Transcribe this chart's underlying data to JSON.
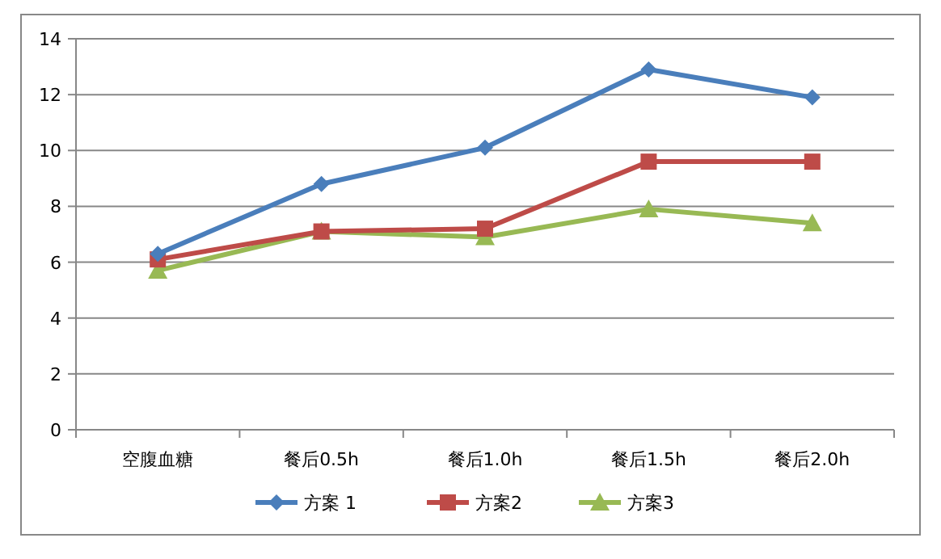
{
  "chart_data": {
    "type": "line",
    "categories": [
      "空腹血糖",
      "餐后0.5h",
      "餐后1.0h",
      "餐后1.5h",
      "餐后2.0h"
    ],
    "series": [
      {
        "name": "方案 1",
        "color": "#4a7ebb",
        "marker": "diamond",
        "values": [
          6.3,
          8.8,
          10.1,
          12.9,
          11.9
        ]
      },
      {
        "name": "方案2",
        "color": "#be4b48",
        "marker": "square",
        "values": [
          6.1,
          7.1,
          7.2,
          9.6,
          9.6
        ]
      },
      {
        "name": "方案3",
        "color": "#98b954",
        "marker": "triangle",
        "values": [
          5.7,
          7.1,
          6.9,
          7.9,
          7.4
        ]
      }
    ],
    "ylim": [
      0,
      14
    ],
    "yticks": [
      0,
      2,
      4,
      6,
      8,
      10,
      12,
      14
    ],
    "grid": "y",
    "legend": "bottom",
    "line_style": "solid"
  }
}
